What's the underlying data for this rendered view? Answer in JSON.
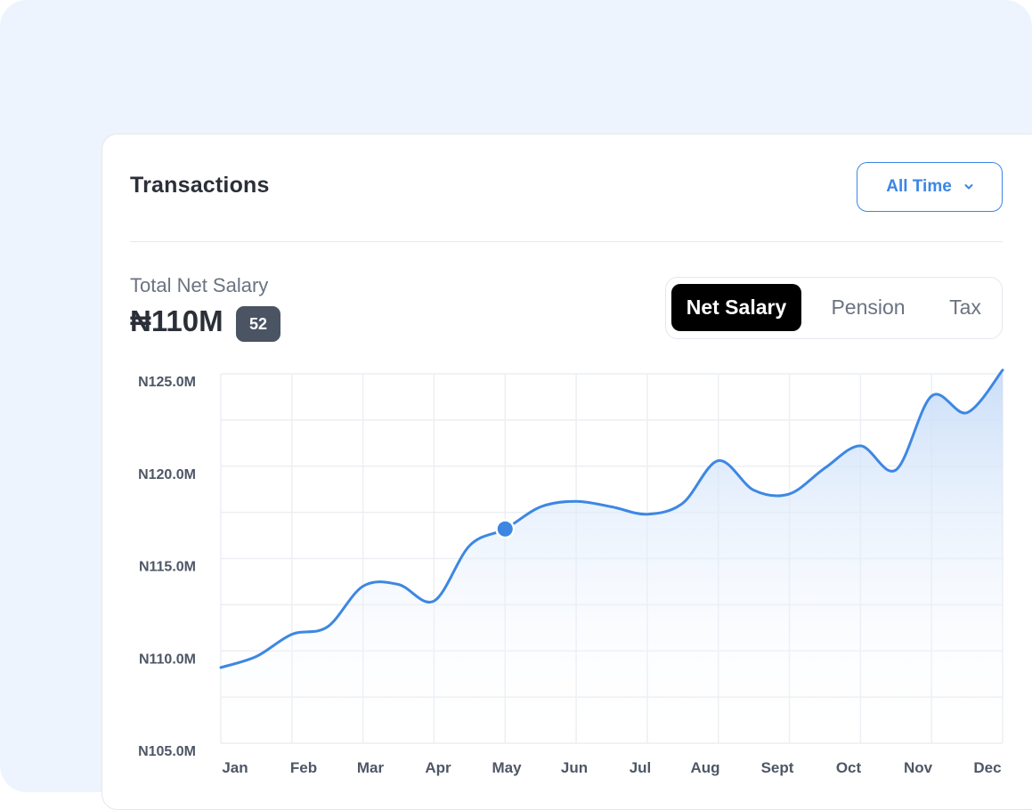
{
  "card": {
    "title": "Transactions",
    "filter_label": "All Time",
    "total_label": "Total Net Salary",
    "total_value": "₦110M",
    "count_badge": "52"
  },
  "tabs": [
    {
      "label": "Net Salary",
      "active": true
    },
    {
      "label": "Pension",
      "active": false
    },
    {
      "label": "Tax",
      "active": false
    }
  ],
  "colors": {
    "accent": "#3b86e6",
    "line": "#3d87e3",
    "active_tab_bg": "#000000",
    "badge_bg": "#4a5462"
  },
  "chart_data": {
    "type": "area",
    "series": [
      {
        "x": [
          0,
          0.5,
          1,
          1.5,
          2,
          2.5,
          3,
          3.5,
          4,
          4.5,
          5,
          5.5,
          6,
          6.5,
          7,
          7.5,
          8,
          8.5,
          9,
          9.5,
          10,
          10.5,
          11
        ],
        "values": [
          109.1,
          109.7,
          110.9,
          111.3,
          113.5,
          113.6,
          112.7,
          115.7,
          116.6,
          117.8,
          118.1,
          117.8,
          117.4,
          118.0,
          120.3,
          118.7,
          118.5,
          119.9,
          121.1,
          119.8,
          123.8,
          122.9,
          125.2
        ]
      }
    ],
    "highlight_point": {
      "x": 4,
      "value": 116.6
    },
    "categories": [
      "Jan",
      "Feb",
      "Mar",
      "Apr",
      "May",
      "Jun",
      "Jul",
      "Aug",
      "Sept",
      "Oct",
      "Nov",
      "Dec"
    ],
    "y_ticks": [
      {
        "value": 125,
        "label": "N125.0M"
      },
      {
        "value": 120,
        "label": "N120.0M"
      },
      {
        "value": 115,
        "label": "N115.0M"
      },
      {
        "value": 110,
        "label": "N110.0M"
      },
      {
        "value": 105,
        "label": "N105.0M"
      }
    ],
    "ylim": [
      105,
      125
    ],
    "xlim": [
      0,
      11
    ],
    "grid": true,
    "legend": "none"
  }
}
